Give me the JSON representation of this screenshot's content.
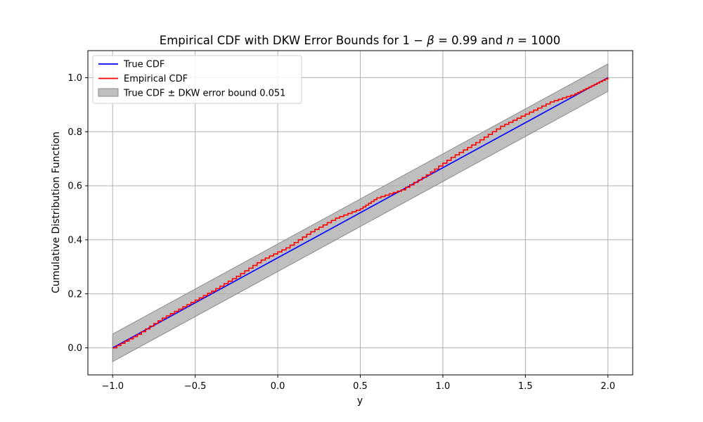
{
  "chart_data": {
    "type": "line",
    "title": "Empirical CDF with DKW Error Bounds for 1 − β = 0.99 and n = 1000",
    "title_parts": {
      "prefix": "Empirical CDF with DKW Error Bounds for ",
      "one": "1",
      "minus": " − ",
      "beta": "β",
      "equals_1": " = 0.99",
      "and": " and ",
      "n": "n",
      "equals_2": " = 1000"
    },
    "xlabel": "y",
    "ylabel": "Cumulative Distribution Function",
    "xlim": [
      -1.15,
      2.15
    ],
    "ylim": [
      -0.1,
      1.1
    ],
    "xticks": [
      -1.0,
      -0.5,
      0.0,
      0.5,
      1.0,
      1.5,
      2.0
    ],
    "xtick_labels": [
      "−1.0",
      "−0.5",
      "0.0",
      "0.5",
      "1.0",
      "1.5",
      "2.0"
    ],
    "yticks": [
      0.0,
      0.2,
      0.4,
      0.6,
      0.8,
      1.0
    ],
    "ytick_labels": [
      "0.0",
      "0.2",
      "0.4",
      "0.6",
      "0.8",
      "1.0"
    ],
    "grid": true,
    "legend_position": "upper-left",
    "dkw_bound": 0.051,
    "series": [
      {
        "name": "True CDF",
        "kind": "line",
        "color": "#0000ff",
        "x": [
          -1.0,
          2.0
        ],
        "y": [
          0.0,
          1.0
        ]
      },
      {
        "name": "Empirical CDF",
        "kind": "step",
        "color": "#ff0000",
        "x": [
          -1.0,
          -0.85,
          -0.7,
          -0.55,
          -0.4,
          -0.25,
          -0.1,
          0.05,
          0.2,
          0.35,
          0.5,
          0.6,
          0.75,
          0.9,
          1.05,
          1.2,
          1.35,
          1.5,
          1.65,
          1.8,
          1.9,
          2.0
        ],
        "y": [
          0.0,
          0.05,
          0.11,
          0.16,
          0.21,
          0.265,
          0.325,
          0.37,
          0.43,
          0.48,
          0.515,
          0.555,
          0.585,
          0.64,
          0.705,
          0.76,
          0.82,
          0.865,
          0.91,
          0.94,
          0.97,
          1.0
        ]
      },
      {
        "name": "True CDF ± DKW error bound 0.051",
        "kind": "band",
        "color": "#a9a9a9",
        "x": [
          -1.0,
          2.0
        ],
        "lower": [
          -0.051,
          0.949
        ],
        "upper": [
          0.051,
          1.051
        ]
      }
    ],
    "legend": [
      {
        "label": "True CDF",
        "color": "#0000ff",
        "kind": "line"
      },
      {
        "label": "Empirical CDF",
        "color": "#ff0000",
        "kind": "line"
      },
      {
        "label": "True CDF ± DKW error bound 0.051",
        "color": "#a9a9a9",
        "kind": "patch"
      }
    ]
  }
}
